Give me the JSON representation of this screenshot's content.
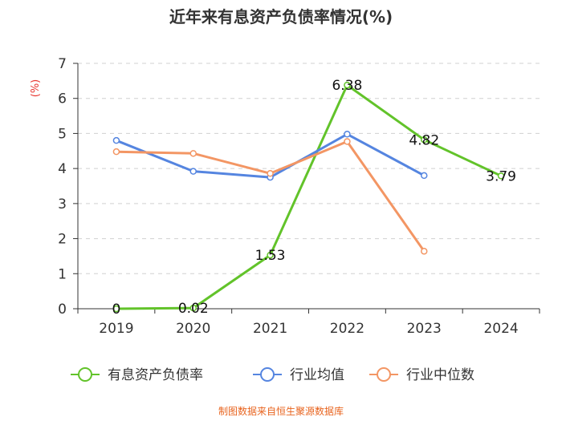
{
  "chart_data": {
    "type": "line",
    "title": "近年来有息资产负债率情况(%)",
    "ylabel": "(%)",
    "categories": [
      "2019",
      "2020",
      "2021",
      "2022",
      "2023",
      "2024"
    ],
    "ylim": [
      0,
      7
    ],
    "yticks": [
      0,
      1,
      2,
      3,
      4,
      5,
      6,
      7
    ],
    "grid": true,
    "series": [
      {
        "name": "有息资产负债率",
        "color": "#62c32a",
        "values": [
          0,
          0.02,
          1.53,
          6.38,
          4.82,
          3.79
        ],
        "labels": [
          "0",
          "0.02",
          "1.53",
          "6.38",
          "4.82",
          "3.79"
        ],
        "show_labels": true
      },
      {
        "name": "行业均值",
        "color": "#5585e0",
        "values": [
          4.8,
          3.92,
          3.75,
          4.98,
          3.8,
          null
        ],
        "show_labels": false
      },
      {
        "name": "行业中位数",
        "color": "#f39664",
        "values": [
          4.48,
          4.43,
          3.86,
          4.77,
          1.64,
          null
        ],
        "show_labels": false
      }
    ],
    "legend_position": "bottom",
    "source": "制图数据来自恒生聚源数据库"
  }
}
